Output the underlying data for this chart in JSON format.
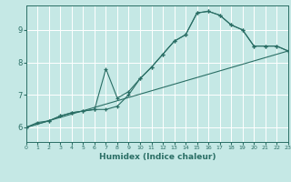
{
  "xlabel": "Humidex (Indice chaleur)",
  "bg_color": "#c5e8e5",
  "grid_color": "#ffffff",
  "line_color": "#2a6e65",
  "xlim": [
    0,
    23
  ],
  "ylim": [
    5.55,
    9.75
  ],
  "yticks": [
    6,
    7,
    8,
    9
  ],
  "xticks": [
    0,
    1,
    2,
    3,
    4,
    5,
    6,
    7,
    8,
    9,
    10,
    11,
    12,
    13,
    14,
    15,
    16,
    17,
    18,
    19,
    20,
    21,
    22,
    23
  ],
  "line1_x": [
    0,
    1,
    2,
    3,
    4,
    5,
    6,
    7,
    8,
    9,
    10,
    11,
    12,
    13,
    14,
    15,
    16,
    17,
    18,
    19,
    20,
    21,
    22,
    23
  ],
  "line1_y": [
    6.0,
    6.15,
    6.2,
    6.35,
    6.45,
    6.5,
    6.55,
    6.55,
    6.65,
    7.0,
    7.5,
    7.85,
    8.25,
    8.65,
    8.85,
    9.52,
    9.57,
    9.45,
    9.15,
    9.0,
    8.5,
    8.5,
    8.5,
    8.35
  ],
  "line2_x": [
    0,
    2,
    3,
    4,
    5,
    6,
    7,
    8,
    9,
    10,
    11,
    12,
    13,
    14,
    15,
    16,
    17,
    18,
    19,
    20,
    21,
    22,
    23
  ],
  "line2_y": [
    6.0,
    6.2,
    6.35,
    6.45,
    6.5,
    6.55,
    7.8,
    6.9,
    7.1,
    7.5,
    7.85,
    8.25,
    8.65,
    8.85,
    9.52,
    9.57,
    9.45,
    9.15,
    9.0,
    8.5,
    8.5,
    8.5,
    8.35
  ],
  "line3_x": [
    0,
    23
  ],
  "line3_y": [
    6.0,
    8.35
  ]
}
